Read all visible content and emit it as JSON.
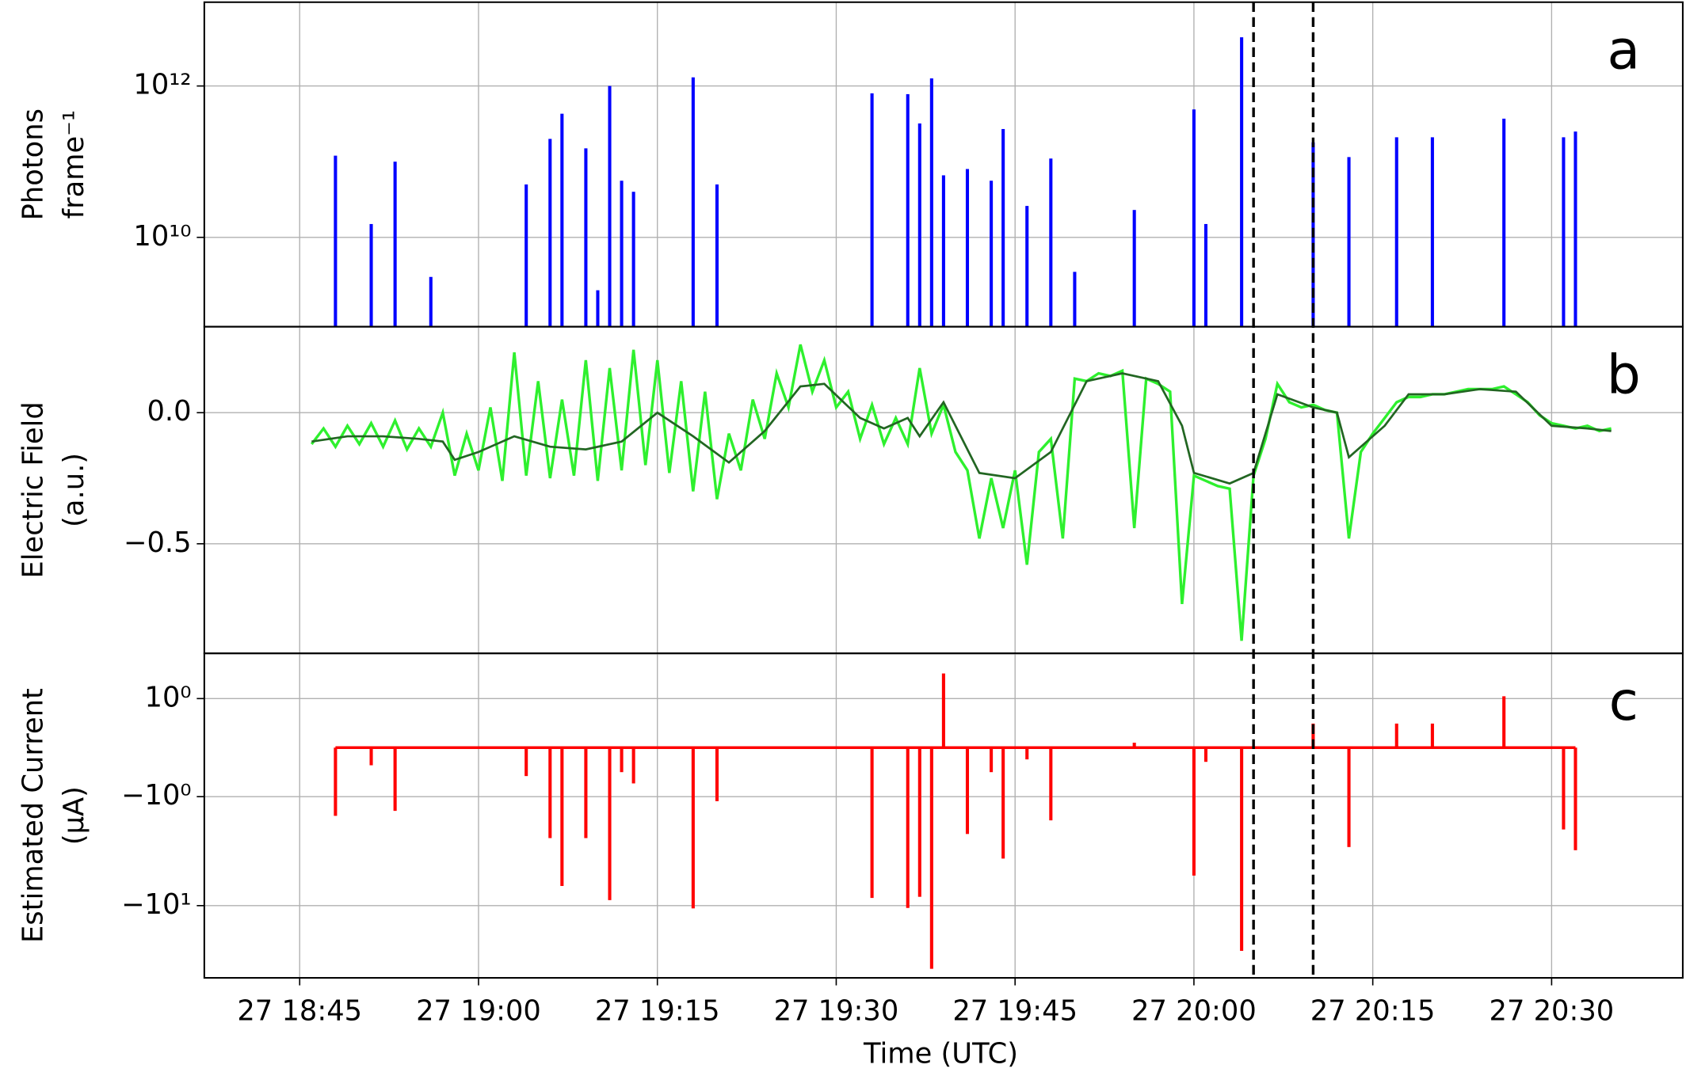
{
  "chart_data": [
    {
      "type": "bar",
      "panel_label": "a",
      "ylabel": [
        "Photons",
        "frame⁻¹"
      ],
      "yscale": "log",
      "grid": true,
      "color": "#0000ff",
      "ylim": [
        660000000,
        12800000000000
      ],
      "yticks": [
        {
          "value": 10000000000,
          "label": "10¹⁰"
        },
        {
          "value": 1000000000000,
          "label": "10¹²"
        }
      ],
      "x": [
        "27 18:48",
        "27 18:51",
        "27 18:53",
        "27 18:56",
        "27 19:04",
        "27 19:06",
        "27 19:07",
        "27 19:09",
        "27 19:10",
        "27 19:11",
        "27 19:12",
        "27 19:13",
        "27 19:18",
        "27 19:20",
        "27 19:33",
        "27 19:36",
        "27 19:37",
        "27 19:38",
        "27 19:39",
        "27 19:41",
        "27 19:43",
        "27 19:44",
        "27 19:46",
        "27 19:48",
        "27 19:50",
        "27 19:55",
        "27 20:00",
        "27 20:01",
        "27 20:04",
        "27 20:10",
        "27 20:13",
        "27 20:17",
        "27 20:20",
        "27 20:26",
        "27 20:31",
        "27 20:32"
      ],
      "values": [
        120000000000,
        15000000000,
        100000000000,
        3000000000,
        50000000000,
        200000000000,
        430000000000,
        150000000000,
        2000000000,
        1000000000000,
        56000000000,
        40000000000,
        1300000000000,
        50000000000,
        800000000000,
        780000000000,
        320000000000,
        1260000000000,
        66000000000,
        80000000000,
        56000000000,
        270000000000,
        26000000000,
        110000000000,
        3500000000,
        23000000000,
        490000000000,
        15000000000,
        4400000000000,
        180000000000,
        115000000000,
        210000000000,
        210000000000,
        370000000000,
        210000000000,
        250000000000
      ]
    },
    {
      "type": "line",
      "panel_label": "b",
      "ylabel": [
        "Electric Field",
        "(a.u.)"
      ],
      "grid": true,
      "ylim": [
        -0.918,
        0.328
      ],
      "yticks": [
        {
          "value": -0.5,
          "label": "−0.5"
        },
        {
          "value": 0,
          "label": "0.0"
        }
      ],
      "series": [
        {
          "color": "#2ef02e",
          "x": [
            "27 18:46",
            "27 18:47",
            "27 18:48",
            "27 18:49",
            "27 18:50",
            "27 18:51",
            "27 18:52",
            "27 18:53",
            "27 18:54",
            "27 18:55",
            "27 18:56",
            "27 18:57",
            "27 18:58",
            "27 18:59",
            "27 19:00",
            "27 19:01",
            "27 19:02",
            "27 19:03",
            "27 19:04",
            "27 19:05",
            "27 19:06",
            "27 19:07",
            "27 19:08",
            "27 19:09",
            "27 19:10",
            "27 19:11",
            "27 19:12",
            "27 19:13",
            "27 19:14",
            "27 19:15",
            "27 19:16",
            "27 19:17",
            "27 19:18",
            "27 19:19",
            "27 19:20",
            "27 19:21",
            "27 19:22",
            "27 19:23",
            "27 19:24",
            "27 19:25",
            "27 19:26",
            "27 19:27",
            "27 19:28",
            "27 19:29",
            "27 19:30",
            "27 19:31",
            "27 19:32",
            "27 19:33",
            "27 19:34",
            "27 19:35",
            "27 19:36",
            "27 19:37",
            "27 19:38",
            "27 19:39",
            "27 19:40",
            "27 19:41",
            "27 19:42",
            "27 19:43",
            "27 19:44",
            "27 19:45",
            "27 19:46",
            "27 19:47",
            "27 19:48",
            "27 19:49",
            "27 19:50",
            "27 19:51",
            "27 19:52",
            "27 19:53",
            "27 19:54",
            "27 19:55",
            "27 19:56",
            "27 19:57",
            "27 19:58",
            "27 19:59",
            "27 20:00",
            "27 20:01",
            "27 20:02",
            "27 20:03",
            "27 20:04",
            "27 20:05",
            "27 20:06",
            "27 20:07",
            "27 20:08",
            "27 20:09",
            "27 20:10",
            "27 20:11",
            "27 20:12",
            "27 20:13",
            "27 20:14",
            "27 20:15",
            "27 20:16",
            "27 20:17",
            "27 20:18",
            "27 20:19",
            "27 20:20",
            "27 20:21",
            "27 20:22",
            "27 20:23",
            "27 20:24",
            "27 20:25",
            "27 20:26",
            "27 20:27",
            "27 20:28",
            "27 20:29",
            "27 20:30",
            "27 20:31",
            "27 20:32",
            "27 20:33",
            "27 20:34",
            "27 20:35"
          ],
          "values": [
            -0.12,
            -0.06,
            -0.13,
            -0.05,
            -0.12,
            -0.04,
            -0.13,
            -0.03,
            -0.14,
            -0.06,
            -0.13,
            0.0,
            -0.24,
            -0.08,
            -0.22,
            0.02,
            -0.26,
            0.23,
            -0.24,
            0.12,
            -0.25,
            0.05,
            -0.24,
            0.2,
            -0.26,
            0.17,
            -0.22,
            0.24,
            -0.2,
            0.2,
            -0.23,
            0.12,
            -0.3,
            0.08,
            -0.33,
            -0.08,
            -0.22,
            0.05,
            -0.1,
            0.15,
            0.02,
            0.26,
            0.08,
            0.2,
            0.02,
            0.08,
            -0.1,
            0.03,
            -0.12,
            -0.02,
            -0.12,
            0.17,
            -0.08,
            0.03,
            -0.15,
            -0.22,
            -0.48,
            -0.25,
            -0.44,
            -0.22,
            -0.58,
            -0.15,
            -0.1,
            -0.48,
            0.13,
            0.12,
            0.15,
            0.14,
            0.16,
            -0.44,
            0.13,
            0.11,
            0.08,
            -0.73,
            -0.24,
            -0.26,
            -0.28,
            -0.29,
            -0.87,
            -0.24,
            -0.1,
            0.11,
            0.04,
            0.02,
            0.03,
            0.01,
            0.0,
            -0.48,
            -0.15,
            -0.08,
            -0.02,
            0.04,
            0.06,
            0.06,
            0.07,
            0.07,
            0.08,
            0.09,
            0.09,
            0.09,
            0.1,
            0.07,
            0.04,
            -0.01,
            -0.04,
            -0.05,
            -0.06,
            -0.05,
            -0.07,
            -0.06
          ]
        },
        {
          "color": "#226622",
          "x": [
            "27 18:46",
            "27 18:49",
            "27 18:52",
            "27 18:55",
            "27 18:57",
            "27 18:58",
            "27 19:00",
            "27 19:03",
            "27 19:06",
            "27 19:09",
            "27 19:12",
            "27 19:15",
            "27 19:18",
            "27 19:21",
            "27 19:24",
            "27 19:27",
            "27 19:29",
            "27 19:32",
            "27 19:34",
            "27 19:36",
            "27 19:37",
            "27 19:39",
            "27 19:42",
            "27 19:45",
            "27 19:48",
            "27 19:51",
            "27 19:54",
            "27 19:57",
            "27 19:59",
            "27 20:00",
            "27 20:03",
            "27 20:05",
            "27 20:07",
            "27 20:10",
            "27 20:12",
            "27 20:13",
            "27 20:16",
            "27 20:18",
            "27 20:21",
            "27 20:24",
            "27 20:27",
            "27 20:30",
            "27 20:33",
            "27 20:35"
          ],
          "values": [
            -0.11,
            -0.09,
            -0.09,
            -0.1,
            -0.11,
            -0.18,
            -0.15,
            -0.09,
            -0.13,
            -0.14,
            -0.11,
            0.0,
            -0.09,
            -0.19,
            -0.07,
            0.1,
            0.11,
            -0.02,
            -0.06,
            -0.02,
            -0.09,
            0.04,
            -0.23,
            -0.25,
            -0.15,
            0.12,
            0.15,
            0.12,
            -0.05,
            -0.23,
            -0.27,
            -0.23,
            0.07,
            0.02,
            0.0,
            -0.17,
            -0.05,
            0.07,
            0.07,
            0.09,
            0.08,
            -0.05,
            -0.06,
            -0.07
          ]
        }
      ]
    },
    {
      "type": "bar",
      "panel_label": "c",
      "ylabel": [
        "Estimated Current",
        "(μA)"
      ],
      "yscale": "symlog",
      "linthresh": 1,
      "grid": true,
      "color": "#ff0000",
      "ylim": [
        -46,
        2.6
      ],
      "yticks": [
        {
          "value": -10,
          "label": "−10¹"
        },
        {
          "value": -1,
          "label": "−10⁰"
        },
        {
          "value": 1,
          "label": "10⁰"
        }
      ],
      "x": [
        "27 18:48",
        "27 18:51",
        "27 18:53",
        "27 18:56",
        "27 19:04",
        "27 19:06",
        "27 19:07",
        "27 19:09",
        "27 19:10",
        "27 19:11",
        "27 19:12",
        "27 19:13",
        "27 19:18",
        "27 19:20",
        "27 19:33",
        "27 19:36",
        "27 19:37",
        "27 19:38",
        "27 19:39",
        "27 19:41",
        "27 19:43",
        "27 19:44",
        "27 19:46",
        "27 19:48",
        "27 19:50",
        "27 19:55",
        "27 20:00",
        "27 20:01",
        "27 20:04",
        "27 20:10",
        "27 20:13",
        "27 20:17",
        "27 20:20",
        "27 20:26",
        "27 20:31",
        "27 20:32"
      ],
      "values": [
        -1.5,
        -0.36,
        -1.35,
        0,
        -0.58,
        -2.4,
        -6.6,
        -2.4,
        0,
        -8.9,
        -0.5,
        -0.73,
        -10.6,
        -1.1,
        -8.5,
        -10.5,
        -8.3,
        -38,
        1.7,
        -2.2,
        -0.5,
        -3.7,
        -0.24,
        -1.65,
        0,
        0.1,
        -5.3,
        -0.29,
        -26,
        0.49,
        -2.9,
        0.49,
        0.49,
        1.05,
        -2.0,
        -3.1
      ],
      "xlabel": "Time (UTC)",
      "xlim": [
        "27 18:37",
        "27 20:41"
      ],
      "xticks": [
        "27 18:45",
        "27 19:00",
        "27 19:15",
        "27 19:30",
        "27 19:45",
        "27 20:00",
        "27 20:15",
        "27 20:30"
      ],
      "vlines": [
        "27 20:05",
        "27 20:10"
      ]
    }
  ]
}
